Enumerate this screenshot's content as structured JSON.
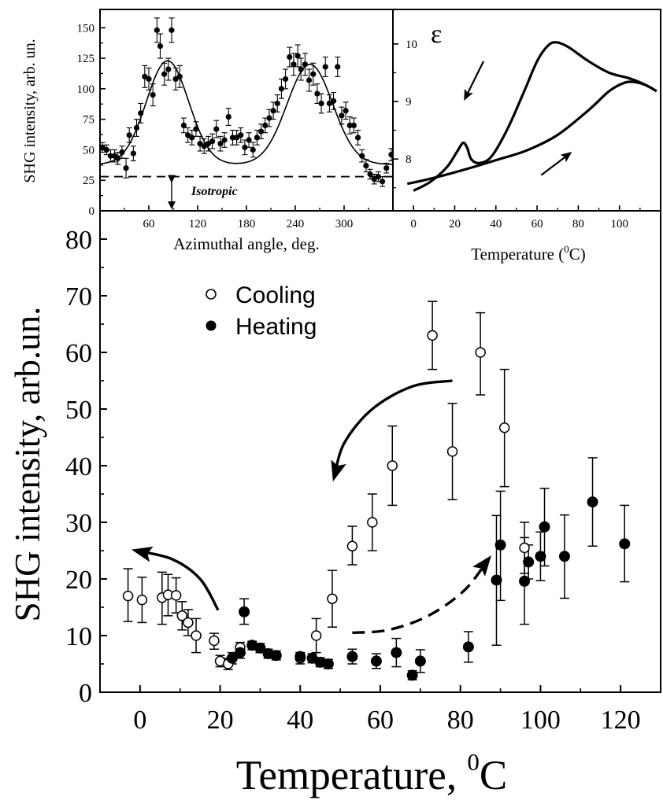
{
  "chart_data": [
    {
      "id": "main",
      "type": "scatter",
      "xlabel": "Temperature, ",
      "xlabel_sup": "0",
      "xlabel_tail": "C",
      "ylabel": "SHG intensity, arb.un.",
      "xlim": [
        -10,
        130
      ],
      "ylim": [
        0,
        85
      ],
      "xticks": [
        0,
        20,
        40,
        60,
        80,
        100,
        120
      ],
      "yticks": [
        0,
        10,
        20,
        30,
        40,
        50,
        60,
        70,
        80
      ],
      "legend_position": "top-left",
      "series": [
        {
          "name": "Cooling",
          "marker": "open-circle",
          "points": [
            {
              "x": -3,
              "y": 17,
              "lo": 12.5,
              "hi": 21.8
            },
            {
              "x": 0.5,
              "y": 16.3,
              "lo": 12.3,
              "hi": 20.3
            },
            {
              "x": 5.5,
              "y": 16.7,
              "lo": 12,
              "hi": 21.2
            },
            {
              "x": 7,
              "y": 17.2,
              "lo": 13.5,
              "hi": 20.8
            },
            {
              "x": 9,
              "y": 17.1,
              "lo": 14,
              "hi": 20.2
            },
            {
              "x": 10.5,
              "y": 13.5,
              "lo": 11,
              "hi": 16
            },
            {
              "x": 12,
              "y": 12.3,
              "lo": 10,
              "hi": 14.6
            },
            {
              "x": 14,
              "y": 10,
              "lo": 7,
              "hi": 13
            },
            {
              "x": 18.5,
              "y": 9.1,
              "lo": 7.6,
              "hi": 10.4
            },
            {
              "x": 20,
              "y": 5.5,
              "lo": 4.5,
              "hi": 6.5
            },
            {
              "x": 22,
              "y": 5,
              "lo": 4,
              "hi": 6
            },
            {
              "x": 25,
              "y": 7.9,
              "lo": 7,
              "hi": 8.8
            },
            {
              "x": 40,
              "y": 6,
              "lo": 5,
              "hi": 7
            },
            {
              "x": 44,
              "y": 10,
              "lo": 7,
              "hi": 13
            },
            {
              "x": 48,
              "y": 16.5,
              "lo": 11.5,
              "hi": 21.5
            },
            {
              "x": 53,
              "y": 25.8,
              "lo": 22.5,
              "hi": 29.3
            },
            {
              "x": 58,
              "y": 30,
              "lo": 25,
              "hi": 35
            },
            {
              "x": 63,
              "y": 40,
              "lo": 33,
              "hi": 47
            },
            {
              "x": 73,
              "y": 63,
              "lo": 57,
              "hi": 69
            },
            {
              "x": 78,
              "y": 42.5,
              "lo": 34,
              "hi": 51
            },
            {
              "x": 85,
              "y": 60,
              "lo": 52.5,
              "hi": 67
            },
            {
              "x": 91,
              "y": 46.7,
              "lo": 36.3,
              "hi": 57
            },
            {
              "x": 96,
              "y": 25.5,
              "lo": 21,
              "hi": 30
            }
          ]
        },
        {
          "name": "Heating",
          "marker": "filled-circle",
          "points": [
            {
              "x": 23,
              "y": 6,
              "lo": 5,
              "hi": 7
            },
            {
              "x": 25,
              "y": 7,
              "lo": 6,
              "hi": 8
            },
            {
              "x": 26,
              "y": 14.2,
              "lo": 12,
              "hi": 16.5
            },
            {
              "x": 28,
              "y": 8.3,
              "lo": 7.5,
              "hi": 9
            },
            {
              "x": 30,
              "y": 7.8,
              "lo": 7,
              "hi": 8.6
            },
            {
              "x": 32,
              "y": 6.8,
              "lo": 6,
              "hi": 7.6
            },
            {
              "x": 34,
              "y": 6.5,
              "lo": 5.7,
              "hi": 7.3
            },
            {
              "x": 40,
              "y": 6.3,
              "lo": 5.6,
              "hi": 7
            },
            {
              "x": 43,
              "y": 6,
              "lo": 5.2,
              "hi": 6.8
            },
            {
              "x": 45,
              "y": 5.3,
              "lo": 4.5,
              "hi": 6.1
            },
            {
              "x": 47,
              "y": 5,
              "lo": 4.2,
              "hi": 5.8
            },
            {
              "x": 53,
              "y": 6.3,
              "lo": 5,
              "hi": 7.6
            },
            {
              "x": 59,
              "y": 5.5,
              "lo": 4.2,
              "hi": 6.8
            },
            {
              "x": 64,
              "y": 7,
              "lo": 4.5,
              "hi": 9.5
            },
            {
              "x": 68,
              "y": 3,
              "lo": 2.2,
              "hi": 3.8
            },
            {
              "x": 70,
              "y": 5.5,
              "lo": 3.5,
              "hi": 7.5
            },
            {
              "x": 82,
              "y": 8,
              "lo": 5.3,
              "hi": 10.7
            },
            {
              "x": 89,
              "y": 19.8,
              "lo": 8.3,
              "hi": 31.2
            },
            {
              "x": 90,
              "y": 26,
              "lo": 16.2,
              "hi": 35.5
            },
            {
              "x": 96,
              "y": 19.6,
              "lo": 12,
              "hi": 27.3
            },
            {
              "x": 97,
              "y": 23,
              "lo": 20,
              "hi": 26
            },
            {
              "x": 100,
              "y": 24,
              "lo": 19.7,
              "hi": 28.3
            },
            {
              "x": 101,
              "y": 29.2,
              "lo": 22.3,
              "hi": 36
            },
            {
              "x": 106,
              "y": 24,
              "lo": 16.6,
              "hi": 31.3
            },
            {
              "x": 113,
              "y": 33.6,
              "lo": 25.8,
              "hi": 41.4
            },
            {
              "x": 121,
              "y": 26.2,
              "lo": 19.5,
              "hi": 33
            }
          ]
        }
      ],
      "arrows": [
        {
          "style": "solid",
          "points": [
            [
              78,
              55
            ],
            [
              68,
              54
            ],
            [
              58,
              50
            ],
            [
              51,
              44
            ],
            [
              48.5,
              38
            ]
          ]
        },
        {
          "style": "solid",
          "points": [
            [
              19.5,
              14.5
            ],
            [
              15,
              20
            ],
            [
              8,
              23.5
            ],
            [
              -1,
              25
            ]
          ]
        },
        {
          "style": "dashed",
          "points": [
            [
              53,
              10.5
            ],
            [
              62,
              11
            ],
            [
              72,
              13.5
            ],
            [
              81,
              18
            ],
            [
              87,
              23.5
            ]
          ]
        }
      ]
    },
    {
      "id": "inset_azimuthal",
      "type": "scatter",
      "xlabel": "Azimuthal angle, deg.",
      "ylabel": "SHG intensity, arb. un.",
      "xlim": [
        0,
        360
      ],
      "ylim": [
        0,
        165
      ],
      "xticks": [
        60,
        120,
        180,
        240,
        300
      ],
      "yticks": [
        0,
        25,
        50,
        75,
        100,
        125,
        150
      ],
      "annotation": "Isotropic",
      "isotropic_level": 28,
      "fit_curve": {
        "baseline": 38,
        "peaks": [
          {
            "center": 83,
            "amp": 85,
            "width": 26
          },
          {
            "center": 258,
            "amp": 82,
            "width": 28
          }
        ]
      },
      "points": [
        {
          "x": 3,
          "y": 52,
          "e": 4
        },
        {
          "x": 8,
          "y": 50,
          "e": 4
        },
        {
          "x": 13,
          "y": 45,
          "e": 5
        },
        {
          "x": 18,
          "y": 45,
          "e": 5
        },
        {
          "x": 22,
          "y": 43,
          "e": 5
        },
        {
          "x": 27,
          "y": 48,
          "e": 5
        },
        {
          "x": 32,
          "y": 35,
          "e": 8
        },
        {
          "x": 36,
          "y": 62,
          "e": 6
        },
        {
          "x": 41,
          "y": 47,
          "e": 6
        },
        {
          "x": 45,
          "y": 68,
          "e": 7
        },
        {
          "x": 50,
          "y": 80,
          "e": 8
        },
        {
          "x": 55,
          "y": 110,
          "e": 9
        },
        {
          "x": 60,
          "y": 108,
          "e": 9
        },
        {
          "x": 65,
          "y": 95,
          "e": 9
        },
        {
          "x": 70,
          "y": 148,
          "e": 10
        },
        {
          "x": 74,
          "y": 135,
          "e": 10
        },
        {
          "x": 79,
          "y": 112,
          "e": 9
        },
        {
          "x": 84,
          "y": 116,
          "e": 9
        },
        {
          "x": 88,
          "y": 148,
          "e": 10
        },
        {
          "x": 93,
          "y": 108,
          "e": 9
        },
        {
          "x": 98,
          "y": 110,
          "e": 9
        },
        {
          "x": 103,
          "y": 70,
          "e": 6
        },
        {
          "x": 108,
          "y": 62,
          "e": 6
        },
        {
          "x": 113,
          "y": 60,
          "e": 6
        },
        {
          "x": 118,
          "y": 67,
          "e": 6
        },
        {
          "x": 123,
          "y": 55,
          "e": 6
        },
        {
          "x": 128,
          "y": 53,
          "e": 6
        },
        {
          "x": 133,
          "y": 55,
          "e": 6
        },
        {
          "x": 138,
          "y": 57,
          "e": 6
        },
        {
          "x": 143,
          "y": 67,
          "e": 7
        },
        {
          "x": 148,
          "y": 55,
          "e": 6
        },
        {
          "x": 153,
          "y": 58,
          "e": 6
        },
        {
          "x": 158,
          "y": 77,
          "e": 7
        },
        {
          "x": 163,
          "y": 60,
          "e": 6
        },
        {
          "x": 168,
          "y": 60,
          "e": 6
        },
        {
          "x": 173,
          "y": 62,
          "e": 6
        },
        {
          "x": 178,
          "y": 52,
          "e": 6
        },
        {
          "x": 183,
          "y": 58,
          "e": 6
        },
        {
          "x": 188,
          "y": 50,
          "e": 6
        },
        {
          "x": 193,
          "y": 60,
          "e": 6
        },
        {
          "x": 198,
          "y": 65,
          "e": 6
        },
        {
          "x": 203,
          "y": 70,
          "e": 6
        },
        {
          "x": 208,
          "y": 76,
          "e": 7
        },
        {
          "x": 213,
          "y": 82,
          "e": 7
        },
        {
          "x": 218,
          "y": 88,
          "e": 7
        },
        {
          "x": 223,
          "y": 100,
          "e": 8
        },
        {
          "x": 228,
          "y": 108,
          "e": 8
        },
        {
          "x": 233,
          "y": 126,
          "e": 8
        },
        {
          "x": 238,
          "y": 120,
          "e": 9
        },
        {
          "x": 243,
          "y": 127,
          "e": 9
        },
        {
          "x": 247,
          "y": 116,
          "e": 9
        },
        {
          "x": 252,
          "y": 120,
          "e": 9
        },
        {
          "x": 257,
          "y": 107,
          "e": 9
        },
        {
          "x": 262,
          "y": 112,
          "e": 9
        },
        {
          "x": 267,
          "y": 96,
          "e": 8
        },
        {
          "x": 272,
          "y": 88,
          "e": 8
        },
        {
          "x": 277,
          "y": 118,
          "e": 8
        },
        {
          "x": 282,
          "y": 88,
          "e": 7
        },
        {
          "x": 287,
          "y": 90,
          "e": 7
        },
        {
          "x": 292,
          "y": 118,
          "e": 8
        },
        {
          "x": 297,
          "y": 78,
          "e": 7
        },
        {
          "x": 302,
          "y": 82,
          "e": 7
        },
        {
          "x": 307,
          "y": 70,
          "e": 7
        },
        {
          "x": 312,
          "y": 70,
          "e": 6
        },
        {
          "x": 317,
          "y": 60,
          "e": 6
        },
        {
          "x": 322,
          "y": 45,
          "e": 5
        },
        {
          "x": 327,
          "y": 37,
          "e": 5
        },
        {
          "x": 332,
          "y": 30,
          "e": 4
        },
        {
          "x": 337,
          "y": 26,
          "e": 4
        },
        {
          "x": 342,
          "y": 28,
          "e": 4
        },
        {
          "x": 347,
          "y": 24,
          "e": 4
        },
        {
          "x": 352,
          "y": 35,
          "e": 4
        },
        {
          "x": 358,
          "y": 46,
          "e": 5
        }
      ]
    },
    {
      "id": "inset_permittivity",
      "type": "line",
      "title_symbol": "ε",
      "xlabel": "Temperature ",
      "xlabel_sup": "0",
      "xlabel_tail": "C",
      "xlim": [
        -10,
        120
      ],
      "ylim": [
        7.1,
        10.6
      ],
      "xticks": [
        0,
        20,
        40,
        60,
        80,
        100
      ],
      "yticks": [
        8,
        9,
        10
      ],
      "cooling_curve": [
        [
          0,
          7.45
        ],
        [
          8,
          7.6
        ],
        [
          16,
          7.85
        ],
        [
          21,
          8.12
        ],
        [
          24,
          8.28
        ],
        [
          26,
          8.2
        ],
        [
          28,
          8.0
        ],
        [
          32,
          7.93
        ],
        [
          38,
          8.05
        ],
        [
          46,
          8.55
        ],
        [
          54,
          9.2
        ],
        [
          60,
          9.7
        ],
        [
          65,
          9.96
        ],
        [
          69,
          10.03
        ],
        [
          75,
          9.95
        ],
        [
          85,
          9.7
        ],
        [
          95,
          9.5
        ],
        [
          105,
          9.4
        ],
        [
          112,
          9.3
        ],
        [
          118,
          9.18
        ]
      ],
      "heating_curve": [
        [
          -3,
          7.57
        ],
        [
          5,
          7.63
        ],
        [
          15,
          7.72
        ],
        [
          28,
          7.85
        ],
        [
          40,
          7.98
        ],
        [
          55,
          8.15
        ],
        [
          70,
          8.42
        ],
        [
          85,
          8.85
        ],
        [
          95,
          9.18
        ],
        [
          102,
          9.32
        ],
        [
          107,
          9.34
        ],
        [
          113,
          9.28
        ],
        [
          118,
          9.18
        ]
      ],
      "arrows": [
        {
          "from": [
            34,
            9.7
          ],
          "to": [
            25,
            9.05
          ]
        },
        {
          "from": [
            62,
            7.72
          ],
          "to": [
            76,
            8.1
          ]
        }
      ]
    }
  ]
}
